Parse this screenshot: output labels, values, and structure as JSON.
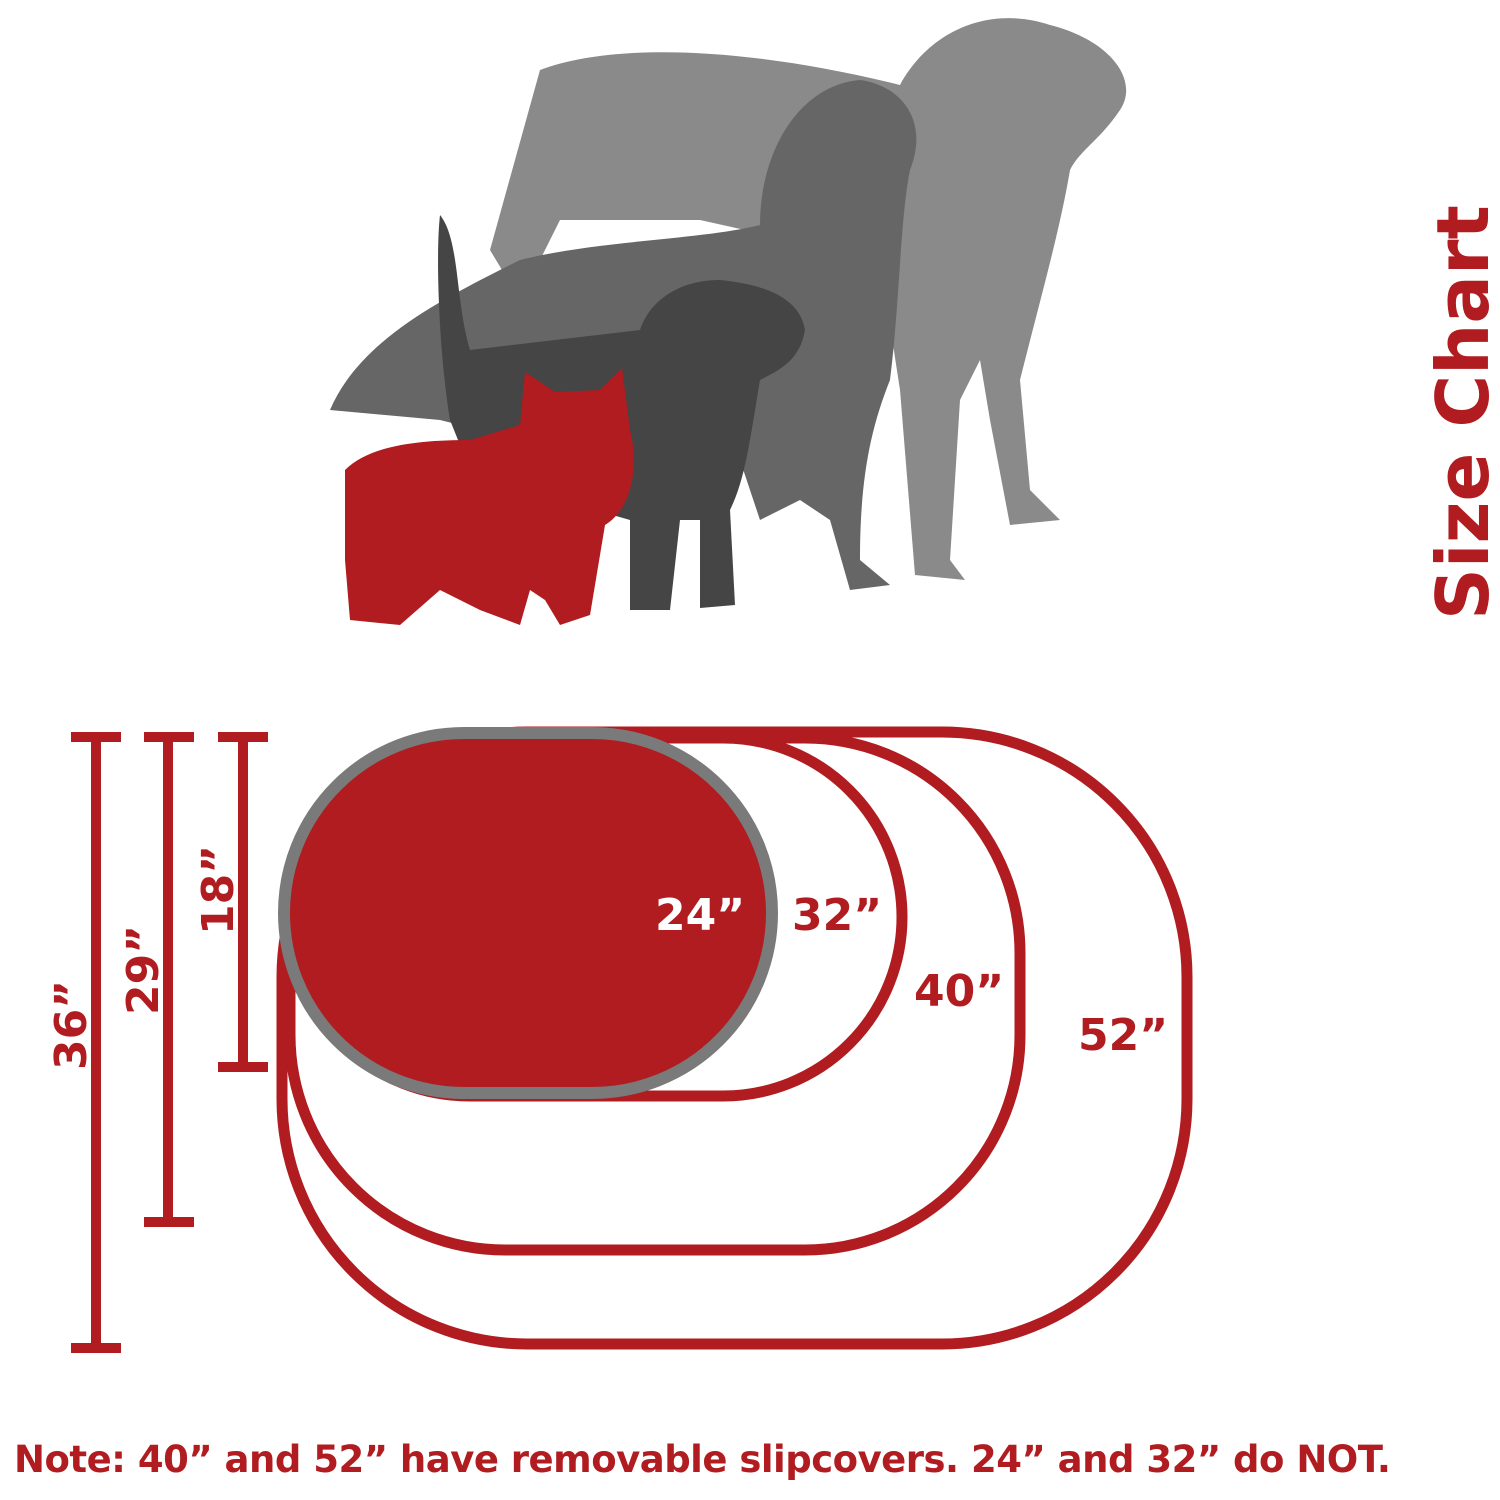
{
  "title": "Size Chart",
  "colors": {
    "accent": "#b01c20",
    "gray_light": "#8a8a8a",
    "gray_mid": "#6a6a6a",
    "gray_dark": "#4a4a4a",
    "rim": "#7a7a7a"
  },
  "illustration": [
    "large-dog-silhouette",
    "medium-dog-silhouette",
    "small-dog-silhouette",
    "cat-silhouette"
  ],
  "beds": [
    {
      "length": "24”",
      "filled": true
    },
    {
      "length": "32”"
    },
    {
      "length": "40”"
    },
    {
      "length": "52”"
    }
  ],
  "widths": [
    "18”",
    "29”",
    "36”"
  ],
  "note": "Note: 40” and 52” have removable slipcovers. 24” and 32” do NOT."
}
